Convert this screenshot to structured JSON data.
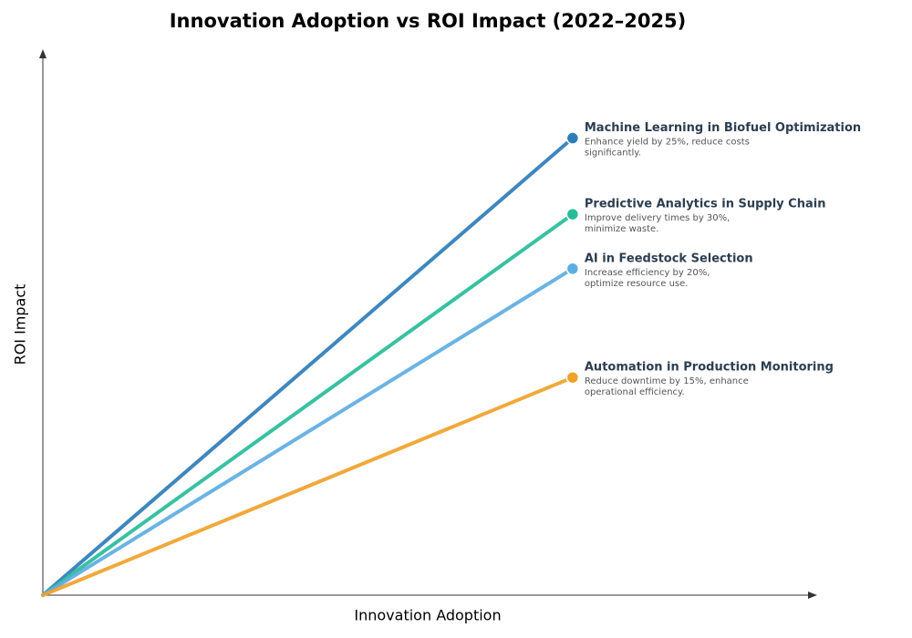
{
  "chart_data": {
    "type": "line",
    "title": "Innovation Adoption vs ROI Impact (2022–2025)",
    "x_label": "Innovation Adoption",
    "y_label": "ROI Impact",
    "xlim": [
      0,
      1
    ],
    "ylim": [
      0,
      1
    ],
    "series": [
      {
        "name": "Machine Learning in Biofuel Optimization",
        "color": "#2e7db8",
        "x": [
          0,
          0.685
        ],
        "values": [
          0,
          0.84
        ],
        "description": [
          "Enhance yield by 25%, reduce costs",
          "significantly."
        ]
      },
      {
        "name": "Predictive Analytics in Supply Chain",
        "color": "#27bc99",
        "x": [
          0,
          0.685
        ],
        "values": [
          0,
          0.7
        ],
        "description": [
          "Improve delivery times by 30%,",
          "minimize waste."
        ]
      },
      {
        "name": "AI in Feedstock Selection",
        "color": "#5dade2",
        "x": [
          0,
          0.685
        ],
        "values": [
          0,
          0.6
        ],
        "description": [
          "Increase efficiency by 20%,",
          "optimize resource use."
        ]
      },
      {
        "name": "Automation in Production Monitoring",
        "color": "#f0a12a",
        "x": [
          0,
          0.685
        ],
        "values": [
          0,
          0.4
        ],
        "description": [
          "Reduce downtime by 15%, enhance",
          "operational efficiency."
        ]
      }
    ]
  }
}
